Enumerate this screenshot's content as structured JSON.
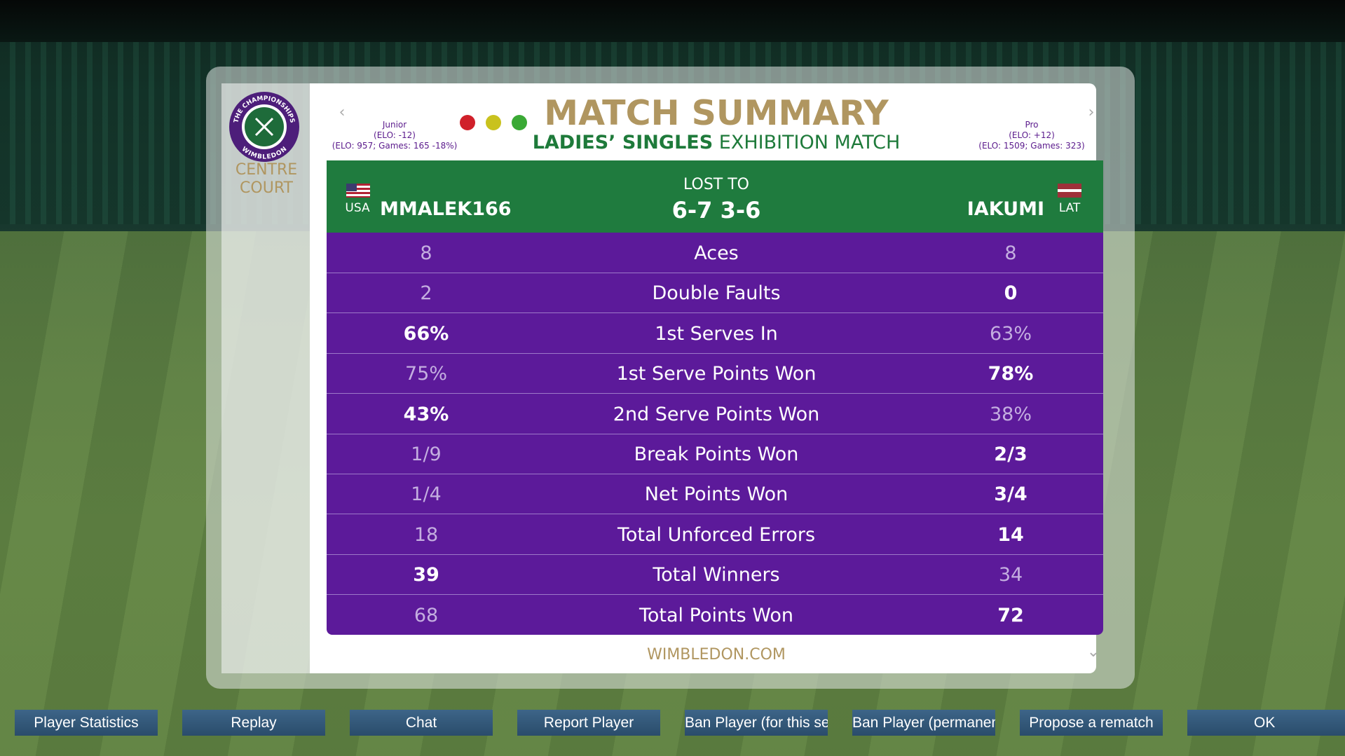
{
  "logo": {
    "ring_top": "THE CHAMPIONSHIPS",
    "ring_bottom": "WIMBLEDON",
    "court_line1": "CENTRE",
    "court_line2": "COURT"
  },
  "header": {
    "title": "MATCH SUMMARY",
    "subtitle_bold": "LADIES’ SINGLES",
    "subtitle": "EXHIBITION MATCH"
  },
  "left_player": {
    "level": "Junior",
    "elo_change": "(ELO: -12)",
    "elo_info": "(ELO: 957; Games: 165 -18%)",
    "country": "USA",
    "name": "MMALEK166"
  },
  "right_player": {
    "level": "Pro",
    "elo_change": "(ELO: +12)",
    "elo_info": "(ELO: 1509; Games: 323)",
    "country": "LAT",
    "name": "IAKUMI"
  },
  "result": {
    "status": "LOST TO",
    "score": "6-7 3-6"
  },
  "stats": [
    {
      "label": "Aces",
      "left": "8",
      "right": "8",
      "highlight": "none"
    },
    {
      "label": "Double Faults",
      "left": "2",
      "right": "0",
      "highlight": "right"
    },
    {
      "label": "1st Serves In",
      "left": "66%",
      "right": "63%",
      "highlight": "left"
    },
    {
      "label": "1st Serve Points Won",
      "left": "75%",
      "right": "78%",
      "highlight": "right"
    },
    {
      "label": "2nd Serve Points Won",
      "left": "43%",
      "right": "38%",
      "highlight": "left"
    },
    {
      "label": "Break Points Won",
      "left": "1/9",
      "right": "2/3",
      "highlight": "right"
    },
    {
      "label": "Net Points Won",
      "left": "1/4",
      "right": "3/4",
      "highlight": "right"
    },
    {
      "label": "Total Unforced Errors",
      "left": "18",
      "right": "14",
      "highlight": "right"
    },
    {
      "label": "Total Winners",
      "left": "39",
      "right": "34",
      "highlight": "left"
    },
    {
      "label": "Total Points Won",
      "left": "68",
      "right": "72",
      "highlight": "right"
    }
  ],
  "footer": "WIMBLEDON.COM",
  "buttons": [
    "Player Statistics",
    "Replay",
    "Chat",
    "Report Player",
    "Ban Player (for this session)",
    "Ban Player (permanently)",
    "Propose a rematch",
    "OK"
  ]
}
